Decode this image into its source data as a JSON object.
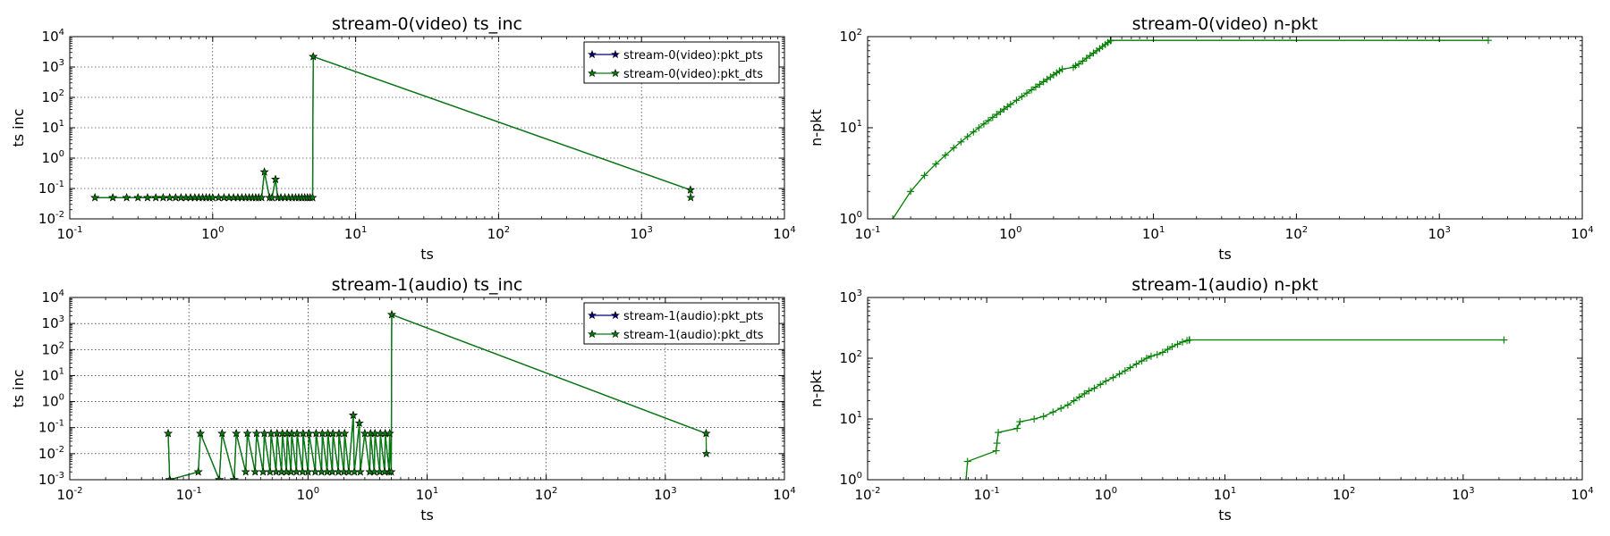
{
  "figure": {
    "title": ""
  },
  "chart_data": [
    {
      "type": "line",
      "title": "stream-0(video) ts_inc",
      "xlabel": "ts",
      "ylabel": "ts inc",
      "xscale": "log",
      "yscale": "log",
      "xlim": [
        0.1,
        10000
      ],
      "ylim": [
        0.01,
        10000
      ],
      "grid": true,
      "legend": "top-right",
      "legend_entries": [
        "stream-0(video):pkt_pts",
        "stream-0(video):pkt_dts"
      ],
      "series": [
        {
          "name": "stream-0(video):pkt_pts",
          "color": "#00007f",
          "marker": "star",
          "x": [
            0.15,
            0.2,
            0.25,
            0.3,
            0.35,
            0.4,
            0.45,
            0.5,
            0.55,
            0.6,
            0.65,
            0.7,
            0.75,
            0.8,
            0.85,
            0.9,
            0.95,
            1.0,
            1.1,
            1.2,
            1.3,
            1.4,
            1.5,
            1.6,
            1.7,
            1.8,
            1.9,
            2.0,
            2.1,
            2.2,
            2.3,
            2.5,
            2.6,
            2.75,
            2.85,
            3.0,
            3.2,
            3.4,
            3.6,
            3.8,
            4.0,
            4.2,
            4.4,
            4.6,
            4.8,
            5.0,
            5.05,
            2200
          ],
          "y": [
            0.05,
            0.05,
            0.05,
            0.05,
            0.05,
            0.05,
            0.05,
            0.05,
            0.05,
            0.05,
            0.05,
            0.05,
            0.05,
            0.05,
            0.05,
            0.05,
            0.05,
            0.05,
            0.05,
            0.05,
            0.05,
            0.05,
            0.05,
            0.05,
            0.05,
            0.05,
            0.05,
            0.05,
            0.05,
            0.05,
            0.35,
            0.05,
            0.05,
            0.2,
            0.05,
            0.05,
            0.05,
            0.05,
            0.05,
            0.05,
            0.05,
            0.05,
            0.05,
            0.05,
            0.05,
            0.05,
            2200,
            0.09
          ]
        },
        {
          "name": "stream-0(video):pkt_dts",
          "color": "#007f00",
          "marker": "star",
          "x": [
            0.15,
            0.2,
            0.25,
            0.3,
            0.35,
            0.4,
            0.45,
            0.5,
            0.55,
            0.6,
            0.65,
            0.7,
            0.75,
            0.8,
            0.85,
            0.9,
            0.95,
            1.0,
            1.1,
            1.2,
            1.3,
            1.4,
            1.5,
            1.6,
            1.7,
            1.8,
            1.9,
            2.0,
            2.1,
            2.2,
            2.3,
            2.5,
            2.6,
            2.75,
            2.85,
            3.0,
            3.2,
            3.4,
            3.6,
            3.8,
            4.0,
            4.2,
            4.4,
            4.6,
            4.8,
            5.0,
            5.05,
            2200,
            2210
          ],
          "y": [
            0.05,
            0.05,
            0.05,
            0.05,
            0.05,
            0.05,
            0.05,
            0.05,
            0.05,
            0.05,
            0.05,
            0.05,
            0.05,
            0.05,
            0.05,
            0.05,
            0.05,
            0.05,
            0.05,
            0.05,
            0.05,
            0.05,
            0.05,
            0.05,
            0.05,
            0.05,
            0.05,
            0.05,
            0.05,
            0.05,
            0.35,
            0.05,
            0.05,
            0.2,
            0.05,
            0.05,
            0.05,
            0.05,
            0.05,
            0.05,
            0.05,
            0.05,
            0.05,
            0.05,
            0.05,
            0.05,
            2200,
            0.09,
            0.05
          ]
        }
      ]
    },
    {
      "type": "line",
      "title": "stream-0(video) n-pkt",
      "xlabel": "ts",
      "ylabel": "n-pkt",
      "xscale": "log",
      "yscale": "log",
      "xlim": [
        0.1,
        10000
      ],
      "ylim": [
        1,
        100
      ],
      "grid": false,
      "series": [
        {
          "color": "#007f00",
          "marker": "plus",
          "x": [
            0.15,
            0.2,
            0.25,
            0.3,
            0.35,
            0.4,
            0.45,
            0.5,
            0.55,
            0.6,
            0.65,
            0.7,
            0.75,
            0.8,
            0.85,
            0.9,
            0.95,
            1.0,
            1.1,
            1.2,
            1.3,
            1.4,
            1.5,
            1.6,
            1.7,
            1.8,
            1.9,
            2.0,
            2.1,
            2.2,
            2.3,
            2.75,
            2.85,
            3.0,
            3.2,
            3.4,
            3.6,
            3.8,
            4.0,
            4.2,
            4.4,
            4.6,
            4.8,
            5.0,
            5.05,
            2200
          ],
          "y": [
            1,
            2,
            3,
            4,
            5,
            6,
            7,
            8,
            9,
            10,
            11,
            12,
            13,
            14,
            15,
            16,
            17,
            18,
            20,
            22,
            24,
            26,
            28,
            30,
            32,
            34,
            36,
            38,
            40,
            42,
            44,
            46,
            48,
            50,
            54,
            58,
            62,
            66,
            70,
            74,
            78,
            82,
            86,
            90,
            91,
            91
          ]
        }
      ]
    },
    {
      "type": "line",
      "title": "stream-1(audio) ts_inc",
      "xlabel": "ts",
      "ylabel": "ts inc",
      "xscale": "log",
      "yscale": "log",
      "xlim": [
        0.01,
        10000
      ],
      "ylim": [
        0.001,
        10000
      ],
      "grid": true,
      "legend": "top-right",
      "legend_entries": [
        "stream-1(audio):pkt_pts",
        "stream-1(audio):pkt_dts"
      ],
      "series": [
        {
          "name": "stream-1(audio):pkt_pts",
          "color": "#00007f",
          "marker": "star",
          "x": [
            0.067,
            0.069,
            0.12,
            0.125,
            0.18,
            0.19,
            0.24,
            0.25,
            0.3,
            0.31,
            0.36,
            0.37,
            0.42,
            0.43,
            0.48,
            0.49,
            0.54,
            0.55,
            0.6,
            0.61,
            0.66,
            0.67,
            0.72,
            0.73,
            0.8,
            0.81,
            0.9,
            0.91,
            1.0,
            1.02,
            1.15,
            1.17,
            1.3,
            1.32,
            1.45,
            1.47,
            1.6,
            1.62,
            1.8,
            1.82,
            2.0,
            2.03,
            2.2,
            2.4,
            2.45,
            2.7,
            2.75,
            3.0,
            3.3,
            3.35,
            3.6,
            3.65,
            4.0,
            4.05,
            4.4,
            4.45,
            4.8,
            4.85,
            5.0,
            5.05,
            2200
          ],
          "y": [
            0.06,
            0.001,
            0.002,
            0.06,
            0.001,
            0.06,
            0.001,
            0.06,
            0.002,
            0.06,
            0.002,
            0.06,
            0.002,
            0.06,
            0.002,
            0.06,
            0.002,
            0.06,
            0.002,
            0.06,
            0.002,
            0.06,
            0.002,
            0.06,
            0.002,
            0.06,
            0.002,
            0.06,
            0.002,
            0.06,
            0.002,
            0.06,
            0.002,
            0.06,
            0.002,
            0.06,
            0.002,
            0.06,
            0.002,
            0.06,
            0.002,
            0.06,
            0.002,
            0.3,
            0.002,
            0.15,
            0.002,
            0.06,
            0.002,
            0.06,
            0.002,
            0.06,
            0.002,
            0.06,
            0.002,
            0.06,
            0.002,
            0.06,
            0.002,
            2200,
            0.06
          ]
        },
        {
          "name": "stream-1(audio):pkt_dts",
          "color": "#007f00",
          "marker": "star",
          "x": [
            0.067,
            0.069,
            0.12,
            0.125,
            0.18,
            0.19,
            0.24,
            0.25,
            0.3,
            0.31,
            0.36,
            0.37,
            0.42,
            0.43,
            0.48,
            0.49,
            0.54,
            0.55,
            0.6,
            0.61,
            0.66,
            0.67,
            0.72,
            0.73,
            0.8,
            0.81,
            0.9,
            0.91,
            1.0,
            1.02,
            1.15,
            1.17,
            1.3,
            1.32,
            1.45,
            1.47,
            1.6,
            1.62,
            1.8,
            1.82,
            2.0,
            2.03,
            2.2,
            2.4,
            2.45,
            2.7,
            2.75,
            3.0,
            3.3,
            3.35,
            3.6,
            3.65,
            4.0,
            4.05,
            4.4,
            4.45,
            4.8,
            4.85,
            5.0,
            5.05,
            2200,
            2210
          ],
          "y": [
            0.06,
            0.001,
            0.002,
            0.06,
            0.001,
            0.06,
            0.001,
            0.06,
            0.002,
            0.06,
            0.002,
            0.06,
            0.002,
            0.06,
            0.002,
            0.06,
            0.002,
            0.06,
            0.002,
            0.06,
            0.002,
            0.06,
            0.002,
            0.06,
            0.002,
            0.06,
            0.002,
            0.06,
            0.002,
            0.06,
            0.002,
            0.06,
            0.002,
            0.06,
            0.002,
            0.06,
            0.002,
            0.06,
            0.002,
            0.06,
            0.002,
            0.06,
            0.002,
            0.3,
            0.002,
            0.15,
            0.002,
            0.06,
            0.002,
            0.06,
            0.002,
            0.06,
            0.002,
            0.06,
            0.002,
            0.06,
            0.002,
            0.06,
            0.002,
            2200,
            0.06,
            0.01
          ]
        }
      ]
    },
    {
      "type": "line",
      "title": "stream-1(audio) n-pkt",
      "xlabel": "ts",
      "ylabel": "n-pkt",
      "xscale": "log",
      "yscale": "log",
      "xlim": [
        0.01,
        10000
      ],
      "ylim": [
        1,
        1000
      ],
      "grid": false,
      "series": [
        {
          "color": "#007f00",
          "marker": "plus",
          "x": [
            0.067,
            0.069,
            0.12,
            0.122,
            0.125,
            0.18,
            0.19,
            0.25,
            0.3,
            0.36,
            0.42,
            0.48,
            0.54,
            0.6,
            0.66,
            0.72,
            0.8,
            0.9,
            1.0,
            1.15,
            1.3,
            1.45,
            1.6,
            1.8,
            2.0,
            2.2,
            2.4,
            2.7,
            3.0,
            3.3,
            3.6,
            4.0,
            4.4,
            4.8,
            5.0,
            5.05,
            2200
          ],
          "y": [
            1,
            2,
            3,
            4,
            6,
            7,
            9,
            10,
            11,
            13,
            15,
            17,
            20,
            23,
            26,
            29,
            32,
            37,
            42,
            48,
            55,
            62,
            70,
            80,
            90,
            100,
            108,
            115,
            125,
            140,
            155,
            170,
            185,
            195,
            199,
            200,
            200
          ]
        }
      ]
    }
  ]
}
